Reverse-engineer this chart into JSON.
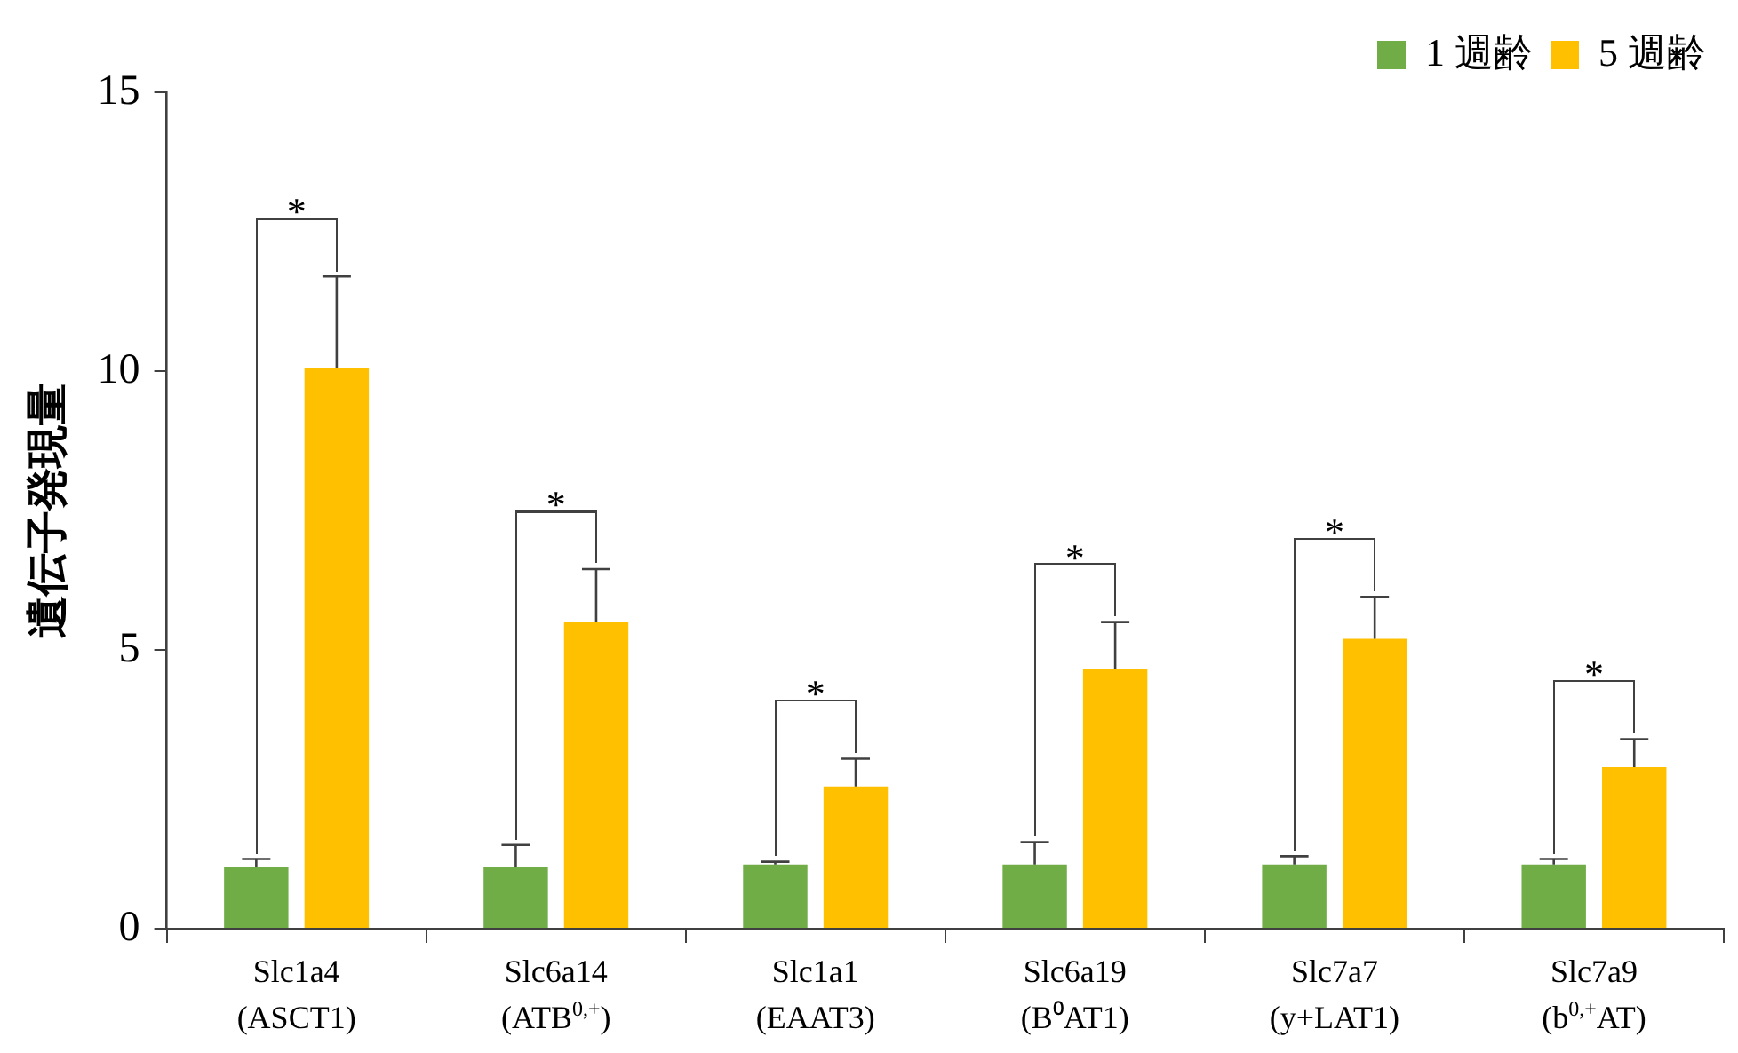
{
  "chart_data": {
    "type": "bar",
    "ylabel": "遺伝子発現量",
    "categories": [
      "Slc1a4\n(ASCT1)",
      "Slc6a14\n(ATB$^{0,+}$)",
      "Slc1a1\n(EAAT3)",
      "Slc6a19\n(B⁰AT1)",
      "Slc7a7\n(y+LAT1)",
      "Slc7a9\n(b$^{0,+}$AT)"
    ],
    "series": [
      {
        "name": "1 週齢",
        "color": "#70ad47",
        "values": [
          1.1,
          1.1,
          1.15,
          1.15,
          1.15,
          1.15
        ],
        "errors": [
          [
            1.1,
            1.25
          ],
          [
            1.1,
            1.5
          ],
          [
            1.15,
            1.2
          ],
          [
            1.15,
            1.55
          ],
          [
            1.15,
            1.3
          ],
          [
            1.15,
            1.25
          ]
        ]
      },
      {
        "name": "5 週齢",
        "color": "#ffc000",
        "values": [
          10.05,
          5.5,
          2.55,
          4.65,
          5.2,
          2.9
        ],
        "errors": [
          [
            10.05,
            11.7
          ],
          [
            5.5,
            6.45
          ],
          [
            2.55,
            3.05
          ],
          [
            4.65,
            5.5
          ],
          [
            5.2,
            5.95
          ],
          [
            2.9,
            3.4
          ]
        ]
      }
    ],
    "annotations": [
      "*",
      "*",
      "*",
      "*",
      "*",
      "*"
    ],
    "ylim": [
      0,
      15
    ],
    "yticks": [
      0,
      5,
      10,
      15
    ],
    "grid": false,
    "legend": "top right"
  }
}
